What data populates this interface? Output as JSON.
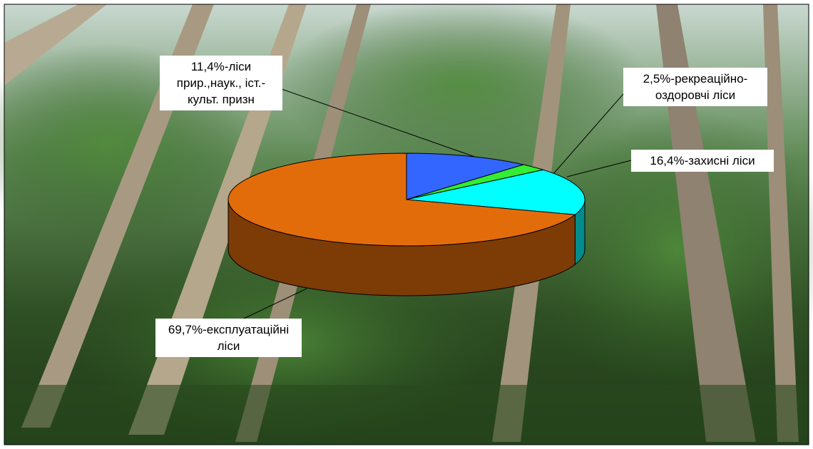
{
  "chart_data": {
    "type": "pie",
    "values": [
      11.4,
      2.5,
      16.4,
      69.7
    ],
    "value_labels": [
      "11,4%-ліси прир.,наук., іст.-культ. призн",
      "2,5%-рекреаційно-оздоровчі ліси",
      "16,4%-захисні ліси",
      "69,7%-експлуатаційні ліси"
    ],
    "colors": [
      "#3366ff",
      "#33ee33",
      "#00ffff",
      "#e36c0a"
    ]
  }
}
